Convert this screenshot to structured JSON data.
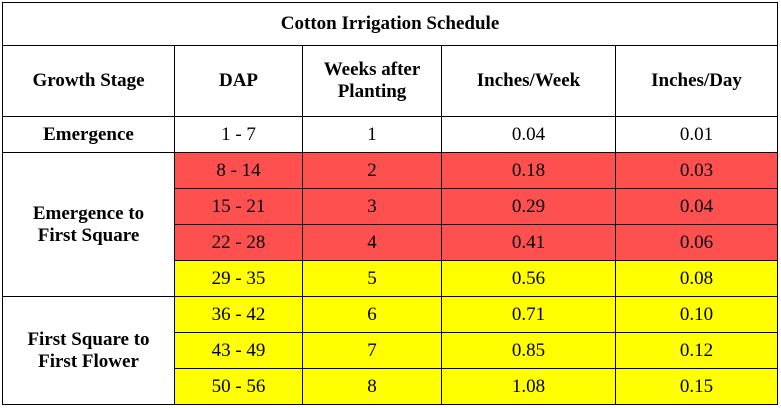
{
  "title": "Cotton Irrigation Schedule",
  "headers": {
    "growth_stage": "Growth Stage",
    "dap": "DAP",
    "weeks_line1": "Weeks after",
    "weeks_line2": "Planting",
    "inches_week": "Inches/Week",
    "inches_day": "Inches/Day"
  },
  "stages": {
    "emergence": "Emergence",
    "emergence_to_first_square_line1": "Emergence to",
    "emergence_to_first_square_line2": "First Square",
    "first_square_to_first_flower_line1": "First Square to",
    "first_square_to_first_flower_line2": "First Flower"
  },
  "colors": {
    "white": "#ffffff",
    "red": "#ff5050",
    "yellow": "#ffff00"
  },
  "rows": [
    {
      "dap": "1 - 7",
      "week": "1",
      "inches_week": "0.04",
      "inches_day": "0.01",
      "color": "white"
    },
    {
      "dap": "8 - 14",
      "week": "2",
      "inches_week": "0.18",
      "inches_day": "0.03",
      "color": "red"
    },
    {
      "dap": "15 - 21",
      "week": "3",
      "inches_week": "0.29",
      "inches_day": "0.04",
      "color": "red"
    },
    {
      "dap": "22 - 28",
      "week": "4",
      "inches_week": "0.41",
      "inches_day": "0.06",
      "color": "red"
    },
    {
      "dap": "29 - 35",
      "week": "5",
      "inches_week": "0.56",
      "inches_day": "0.08",
      "color": "yellow"
    },
    {
      "dap": "36 - 42",
      "week": "6",
      "inches_week": "0.71",
      "inches_day": "0.10",
      "color": "yellow"
    },
    {
      "dap": "43 - 49",
      "week": "7",
      "inches_week": "0.85",
      "inches_day": "0.12",
      "color": "yellow"
    },
    {
      "dap": "50 - 56",
      "week": "8",
      "inches_week": "1.08",
      "inches_day": "0.15",
      "color": "yellow"
    }
  ]
}
